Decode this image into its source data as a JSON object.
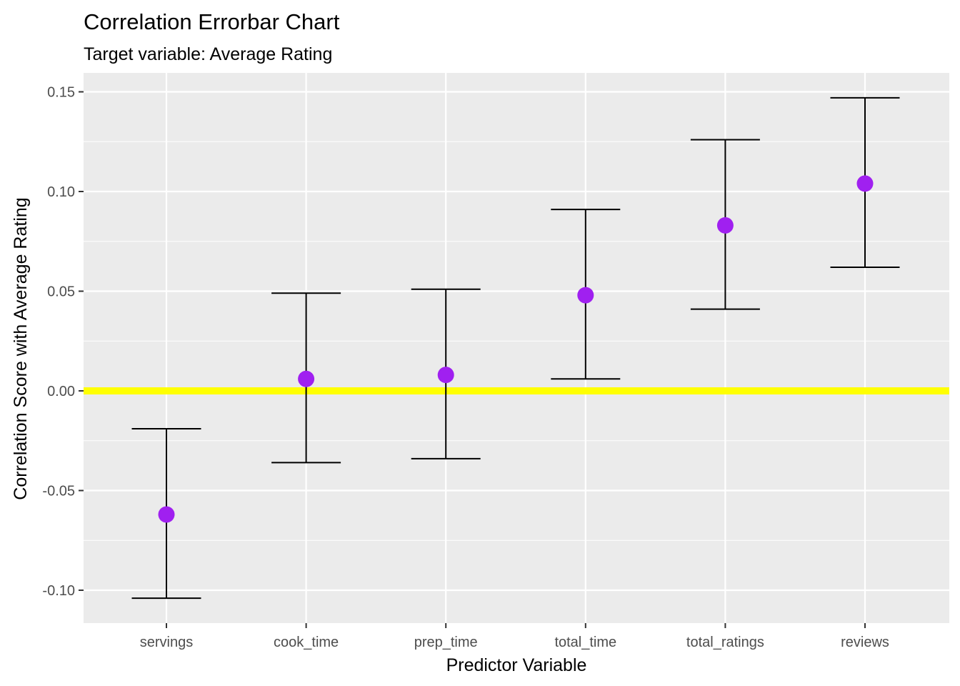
{
  "chart_data": {
    "type": "errorbar",
    "title": "Correlation Errorbar Chart",
    "subtitle": "Target variable: Average Rating",
    "xlabel": "Predictor Variable",
    "ylabel": "Correlation Score with Average Rating",
    "categories": [
      "servings",
      "cook_time",
      "prep_time",
      "total_time",
      "total_ratings",
      "reviews"
    ],
    "values": [
      -0.062,
      0.006,
      0.008,
      0.048,
      0.083,
      0.104
    ],
    "lower": [
      -0.104,
      -0.036,
      -0.034,
      0.006,
      0.041,
      0.062
    ],
    "upper": [
      -0.019,
      0.049,
      0.051,
      0.091,
      0.126,
      0.147
    ],
    "ylim": [
      -0.1165,
      0.1595
    ],
    "yticks": [
      -0.1,
      -0.05,
      0.0,
      0.05,
      0.1,
      0.15
    ],
    "ytick_labels": [
      "-0.10",
      "-0.05",
      "0.00",
      "0.05",
      "0.10",
      "0.15"
    ],
    "reference_line": 0,
    "grid": true,
    "colors": {
      "panel_background": "#ebebeb",
      "grid": "#ffffff",
      "point": "#a020f0",
      "errorbar": "#000000",
      "reference_line": "#ffff00"
    }
  }
}
